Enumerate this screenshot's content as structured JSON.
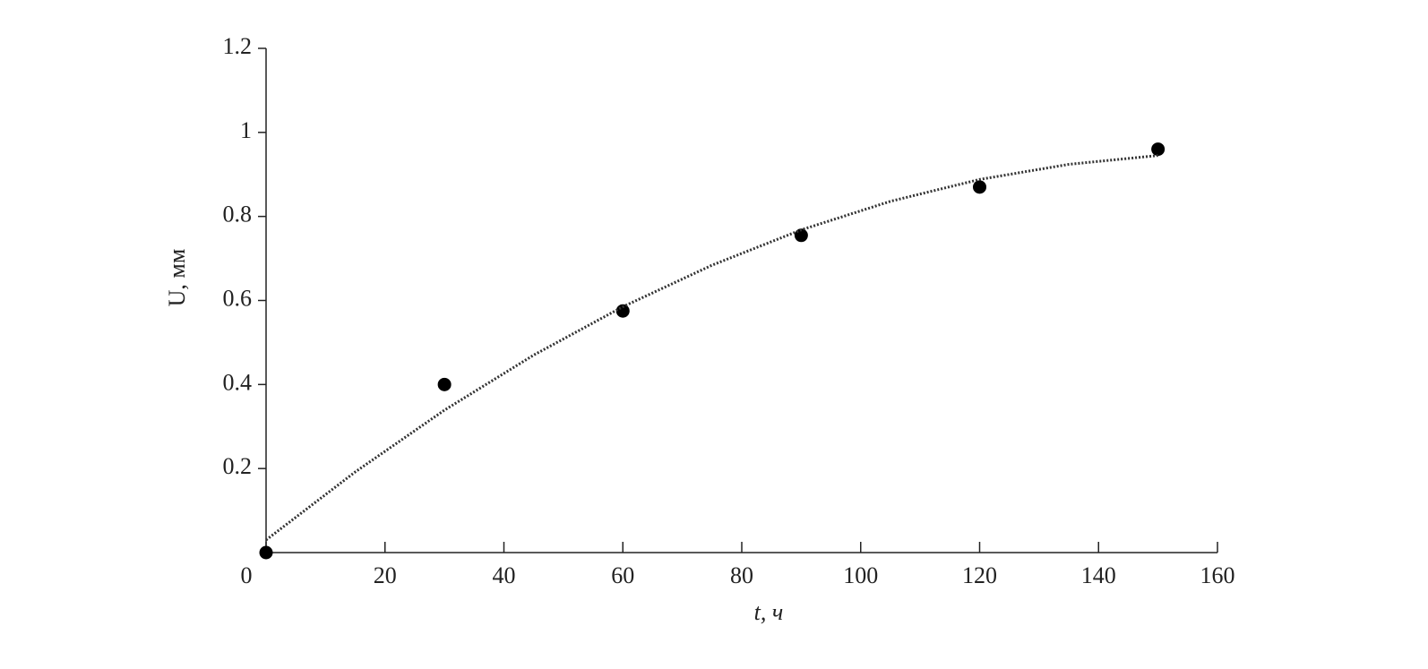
{
  "chart_data": {
    "type": "scatter",
    "x_label": "t, ч",
    "y_label": "U, мм",
    "xlim": [
      0,
      160
    ],
    "xticks": [
      0,
      20,
      40,
      60,
      80,
      100,
      120,
      140,
      160
    ],
    "ylim": [
      0,
      1.2
    ],
    "yticks": [
      0.2,
      0.4,
      0.6,
      0.8,
      1,
      1.2
    ],
    "series": [
      {
        "style": "marker",
        "color": "#000000",
        "x": [
          0,
          30,
          60,
          90,
          120,
          150
        ],
        "values": [
          0,
          0.4,
          0.575,
          0.755,
          0.87,
          0.96
        ]
      },
      {
        "style": "dotted",
        "color": "#333333",
        "x": [
          0,
          15,
          30,
          45,
          60,
          75,
          90,
          105,
          120,
          135,
          150
        ],
        "values": [
          0.03,
          0.192,
          0.339,
          0.47,
          0.585,
          0.684,
          0.768,
          0.836,
          0.888,
          0.924,
          0.945
        ]
      }
    ]
  }
}
